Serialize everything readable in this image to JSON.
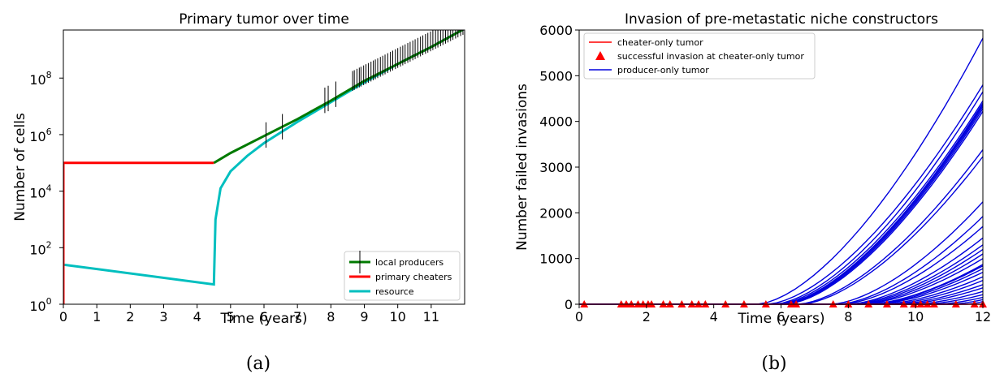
{
  "chart_data": [
    {
      "panel_label": "(a)",
      "type": "line",
      "title": "Primary tumor over time",
      "xlabel": "Time (years)",
      "ylabel": "Number of cells",
      "xlim": [
        0,
        12
      ],
      "ylim_log10": [
        0,
        9.7
      ],
      "yscale": "log",
      "x_ticks": [
        "0",
        "1",
        "2",
        "3",
        "4",
        "5",
        "6",
        "7",
        "8",
        "9",
        "10",
        "11"
      ],
      "y_ticks": [
        {
          "base": "10",
          "exp": "0",
          "value": 0
        },
        {
          "base": "10",
          "exp": "2",
          "value": 2
        },
        {
          "base": "10",
          "exp": "4",
          "value": 4
        },
        {
          "base": "10",
          "exp": "6",
          "value": 6
        },
        {
          "base": "10",
          "exp": "8",
          "value": 8
        }
      ],
      "legend_position": "lower-right",
      "series": [
        {
          "name": "local producers",
          "color": "#007a00",
          "x": [
            4.5,
            5,
            6,
            7,
            8,
            9,
            10,
            11,
            12
          ],
          "log10_y": [
            5.0,
            5.35,
            5.95,
            6.55,
            7.2,
            7.9,
            8.5,
            9.1,
            9.75
          ]
        },
        {
          "name": "primary cheaters",
          "color": "#ff0000",
          "x": [
            0,
            0,
            4.5
          ],
          "log10_y": [
            0,
            5.0,
            5.0
          ]
        },
        {
          "name": "resource",
          "color": "#00bfbf",
          "x": [
            0,
            4.5,
            4.5,
            4.55,
            4.7,
            5,
            5.5,
            6,
            7,
            8,
            9,
            10,
            11,
            12
          ],
          "log10_y": [
            1.4,
            0.7,
            0.7,
            3.0,
            4.1,
            4.7,
            5.25,
            5.7,
            6.45,
            7.15,
            7.85,
            8.5,
            9.1,
            9.75
          ]
        }
      ],
      "invasion_marks_x": [
        6.06,
        6.55,
        7.82,
        7.92,
        8.15,
        8.65,
        8.7,
        8.78,
        8.85,
        8.9,
        8.98,
        9.05,
        9.12,
        9.2,
        9.27,
        9.33,
        9.4,
        9.48,
        9.55,
        9.62,
        9.7,
        9.78,
        9.85,
        9.93,
        10.0,
        10.08,
        10.15,
        10.22,
        10.3,
        10.37,
        10.45,
        10.52,
        10.6,
        10.68,
        10.75,
        10.83,
        10.9,
        10.98,
        11.05,
        11.13,
        11.2,
        11.28,
        11.35,
        11.43,
        11.5,
        11.58,
        11.65,
        11.73,
        11.8,
        11.88,
        11.95
      ],
      "grid": false
    },
    {
      "panel_label": "(b)",
      "type": "line",
      "title": "Invasion of pre-metastatic niche constructors",
      "xlabel": "Time (years)",
      "ylabel": "Number failed invasions",
      "xlim": [
        0,
        12
      ],
      "ylim": [
        0,
        6000
      ],
      "x_ticks": [
        "0",
        "2",
        "4",
        "6",
        "8",
        "10",
        "12"
      ],
      "y_ticks": [
        "0",
        "1000",
        "2000",
        "3000",
        "4000",
        "5000",
        "6000"
      ],
      "legend_position": "upper-left",
      "legend": [
        {
          "name": "cheater-only tumor",
          "color": "#ff0000",
          "marker": "line"
        },
        {
          "name": "successful invasion at cheater-only tumor",
          "color": "#ff0000",
          "marker": "triangle"
        },
        {
          "name": "producer-only tumor",
          "color": "#0000dd",
          "marker": "line"
        }
      ],
      "producer_final_values_at_x12": [
        5820,
        4800,
        4650,
        4450,
        4400,
        4370,
        4330,
        4280,
        4220,
        3380,
        3230,
        2240,
        1920,
        1700,
        1450,
        1300,
        1200,
        1100,
        1000,
        870,
        840,
        780,
        700,
        600,
        520,
        430,
        360,
        280,
        210,
        150,
        100,
        60
      ],
      "producer_onset_x": [
        5.3,
        5.6,
        5.8,
        5.9,
        6.0,
        6.0,
        6.05,
        6.1,
        6.15,
        6.5,
        6.6,
        7.5,
        7.7,
        7.8,
        8.0,
        8.1,
        8.2,
        8.3,
        8.4,
        8.6,
        8.6,
        8.7,
        8.8,
        9.0,
        9.2,
        9.4,
        9.6,
        9.9,
        10.2,
        10.6,
        11.0,
        11.5
      ],
      "cheater_value": 0,
      "invasion_triangle_x": [
        0.15,
        1.25,
        1.4,
        1.55,
        1.75,
        1.9,
        2.05,
        2.15,
        2.5,
        2.7,
        3.05,
        3.35,
        3.55,
        3.75,
        4.35,
        4.9,
        5.55,
        6.3,
        6.45,
        7.55,
        8.0,
        8.6,
        9.15,
        9.65,
        9.95,
        10.15,
        10.35,
        10.55,
        11.2,
        11.75,
        12.0
      ],
      "grid": false
    }
  ]
}
